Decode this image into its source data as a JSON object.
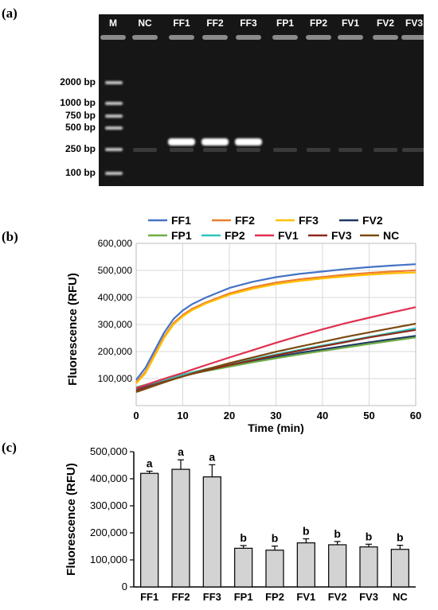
{
  "panels": {
    "a": {
      "label": "(a)"
    },
    "b": {
      "label": "(b)"
    },
    "c": {
      "label": "(c)"
    }
  },
  "gel": {
    "lanes": [
      "M",
      "NC",
      "FF1",
      "FF2",
      "FF3",
      "FP1",
      "FP2",
      "FV1",
      "FV2",
      "FV3"
    ],
    "ladder": [
      "2000 bp",
      "1000 bp",
      "750 bp",
      "500 bp",
      "250 bp",
      "100 bp"
    ],
    "colors": {
      "background": "#161616",
      "band": "#ffffff"
    }
  },
  "chart_data": [
    {
      "type": "line",
      "xlabel": "Time (min)",
      "ylabel": "Fluorescence (RFU)",
      "xlim": [
        0,
        60
      ],
      "ylim": [
        0,
        600000
      ],
      "xticks": [
        "0",
        "10",
        "20",
        "30",
        "40",
        "50",
        "60"
      ],
      "yticks": [
        "100,000",
        "200,000",
        "300,000",
        "400,000",
        "500,000",
        "600,000"
      ],
      "grid": true,
      "legend": "top",
      "x": [
        0,
        2,
        4,
        6,
        8,
        10,
        12,
        15,
        20,
        25,
        30,
        35,
        40,
        45,
        50,
        55,
        60
      ],
      "series": [
        {
          "name": "FF1",
          "color": "#4472c4",
          "values": [
            95000,
            140000,
            205000,
            270000,
            320000,
            352000,
            375000,
            400000,
            435000,
            458000,
            475000,
            487000,
            496000,
            505000,
            512000,
            518000,
            523000
          ]
        },
        {
          "name": "FF2",
          "color": "#ed7d31",
          "values": [
            85000,
            125000,
            190000,
            255000,
            305000,
            335000,
            358000,
            382000,
            415000,
            438000,
            455000,
            467000,
            476000,
            484000,
            491000,
            496000,
            500000
          ]
        },
        {
          "name": "FF3",
          "color": "#ffc000",
          "values": [
            82000,
            120000,
            185000,
            250000,
            300000,
            330000,
            353000,
            378000,
            410000,
            432000,
            449000,
            461000,
            470000,
            478000,
            484000,
            489000,
            492000
          ]
        },
        {
          "name": "FV2",
          "color": "#1f3864",
          "values": [
            62000,
            73000,
            84000,
            94000,
            104000,
            113000,
            121000,
            132000,
            148000,
            164000,
            180000,
            195000,
            208000,
            221000,
            234000,
            246000,
            258000
          ]
        },
        {
          "name": "FP1",
          "color": "#70ad47",
          "values": [
            68000,
            77000,
            86000,
            95000,
            103000,
            111000,
            118000,
            128000,
            144000,
            160000,
            175000,
            189000,
            202000,
            215000,
            228000,
            240000,
            252000
          ]
        },
        {
          "name": "FP2",
          "color": "#2ec5c0",
          "values": [
            66000,
            76000,
            86000,
            96000,
            105000,
            114000,
            123000,
            135000,
            153000,
            171000,
            189000,
            206000,
            222000,
            238000,
            254000,
            270000,
            286000
          ]
        },
        {
          "name": "FV1",
          "color": "#e03050",
          "values": [
            64000,
            76000,
            88000,
            99000,
            110000,
            121000,
            133000,
            150000,
            178000,
            205000,
            232000,
            258000,
            282000,
            305000,
            325000,
            345000,
            364000
          ]
        },
        {
          "name": "FV3",
          "color": "#8b2a1a",
          "values": [
            55000,
            66000,
            77000,
            88000,
            98000,
            108000,
            117000,
            130000,
            150000,
            168000,
            186000,
            203000,
            219000,
            235000,
            252000,
            266000,
            280000
          ]
        },
        {
          "name": "NC",
          "color": "#7a4a10",
          "values": [
            50000,
            62000,
            74000,
            86000,
            97000,
            108000,
            119000,
            134000,
            157000,
            178000,
            199000,
            218000,
            236000,
            254000,
            271000,
            287000,
            303000
          ]
        }
      ]
    },
    {
      "type": "bar",
      "ylabel": "Fluorescence (RFU)",
      "ylim": [
        0,
        500000
      ],
      "yticks": [
        "0",
        "100,000",
        "200,000",
        "300,000",
        "400,000",
        "500,000"
      ],
      "categories": [
        "FF1",
        "FF2",
        "FF3",
        "FP1",
        "FP2",
        "FV1",
        "FV2",
        "FV3",
        "NC"
      ],
      "values": [
        420000,
        435000,
        407000,
        143000,
        136000,
        163000,
        156000,
        148000,
        139000
      ],
      "errors": [
        8000,
        35000,
        45000,
        10000,
        15000,
        15000,
        12000,
        10000,
        15000
      ],
      "annotations": [
        "a",
        "a",
        "a",
        "b",
        "b",
        "b",
        "b",
        "b",
        "b"
      ],
      "bar_color": "#d3d3d3"
    }
  ]
}
